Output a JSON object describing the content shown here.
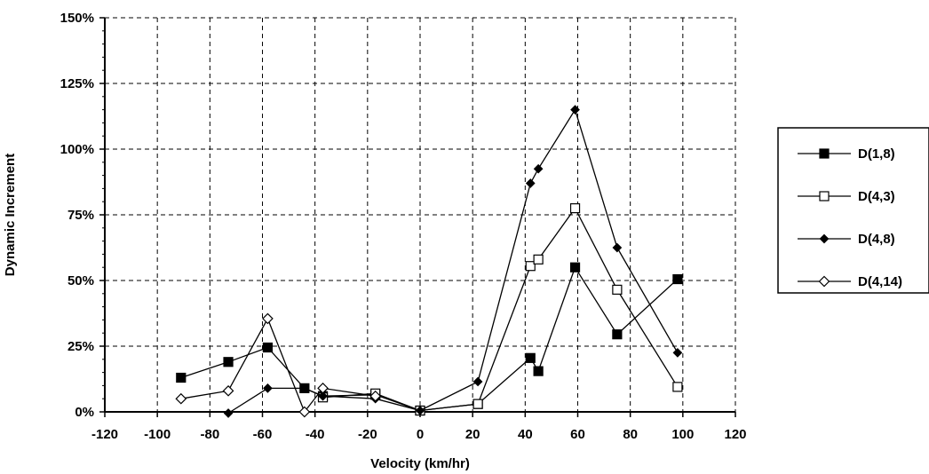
{
  "chart_data": {
    "type": "line",
    "title": "",
    "xlabel": "Velocity (km/hr)",
    "ylabel": "Dynamic Increment",
    "xlim": [
      -120,
      120
    ],
    "ylim": [
      0,
      1.5
    ],
    "x_ticks": [
      "-120",
      "-100",
      "-80",
      "-60",
      "-40",
      "-20",
      "0",
      "20",
      "40",
      "60",
      "80",
      "100",
      "120"
    ],
    "y_ticks": [
      "0%",
      "25%",
      "50%",
      "75%",
      "100%",
      "125%",
      "150%"
    ],
    "grid": true,
    "legend_position": "right",
    "series": [
      {
        "name": "D(1,8)",
        "marker": "filled-square",
        "x": [
          -91,
          -73,
          -58,
          -44,
          -37,
          -17,
          0,
          22,
          42,
          45,
          59,
          75,
          98
        ],
        "y": [
          0.13,
          0.19,
          0.245,
          0.09,
          0.06,
          0.065,
          0.005,
          0.03,
          0.205,
          0.155,
          0.55,
          0.295,
          0.505
        ]
      },
      {
        "name": "D(4,3)",
        "marker": "open-square",
        "x": [
          -37,
          -17,
          0,
          22,
          42,
          45,
          59,
          75,
          98
        ],
        "y": [
          0.055,
          0.07,
          0.005,
          0.03,
          0.555,
          0.58,
          0.775,
          0.465,
          0.095
        ]
      },
      {
        "name": "D(4,8)",
        "marker": "filled-diamond",
        "x": [
          -73,
          -58,
          -44,
          -37,
          -17,
          0,
          22,
          42,
          45,
          59,
          75,
          98
        ],
        "y": [
          -0.005,
          0.09,
          0.09,
          0.06,
          0.05,
          0.005,
          0.115,
          0.87,
          0.925,
          1.15,
          0.625,
          0.225
        ]
      },
      {
        "name": "D(4,14)",
        "marker": "open-diamond",
        "x": [
          -91,
          -73,
          -58,
          -44,
          -37,
          -17
        ],
        "y": [
          0.05,
          0.08,
          0.355,
          0.0,
          0.09,
          0.06
        ]
      }
    ]
  }
}
